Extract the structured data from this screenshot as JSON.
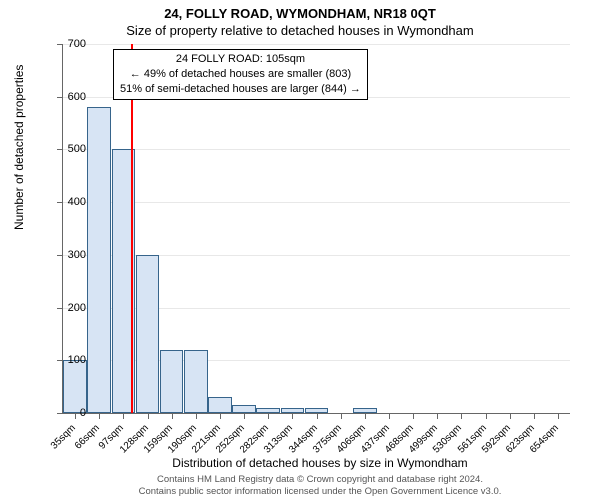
{
  "title_main": "24, FOLLY ROAD, WYMONDHAM, NR18 0QT",
  "title_sub": "Size of property relative to detached houses in Wymondham",
  "yaxis_title": "Number of detached properties",
  "xaxis_title": "Distribution of detached houses by size in Wymondham",
  "footer_line1": "Contains HM Land Registry data © Crown copyright and database right 2024.",
  "footer_line2": "Contains public sector information licensed under the Open Government Licence v3.0.",
  "chart": {
    "type": "histogram",
    "ylim": [
      0,
      700
    ],
    "ytick_step": 100,
    "background_color": "#ffffff",
    "grid_color": "#666666",
    "grid_opacity": 0.15,
    "bar_fill": "#d7e4f4",
    "bar_border": "#36648b",
    "marker_color": "#ff0000",
    "marker_x_index": 2.3,
    "categories": [
      "35sqm",
      "66sqm",
      "97sqm",
      "128sqm",
      "159sqm",
      "190sqm",
      "221sqm",
      "252sqm",
      "282sqm",
      "313sqm",
      "344sqm",
      "375sqm",
      "406sqm",
      "437sqm",
      "468sqm",
      "499sqm",
      "530sqm",
      "561sqm",
      "592sqm",
      "623sqm",
      "654sqm"
    ],
    "values": [
      100,
      580,
      500,
      300,
      120,
      120,
      30,
      15,
      10,
      10,
      10,
      0,
      10,
      0,
      0,
      0,
      0,
      0,
      0,
      0,
      0
    ]
  },
  "annotation": {
    "line1": "24 FOLLY ROAD: 105sqm",
    "line2": "← 49% of detached houses are smaller (803)",
    "line3": "51% of semi-detached houses are larger (844) →"
  }
}
